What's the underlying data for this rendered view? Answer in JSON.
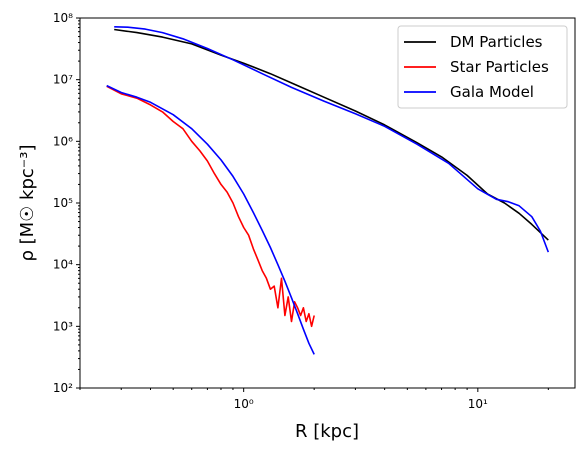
{
  "chart_data": {
    "type": "line",
    "title": "",
    "xlabel": "R [kpc]",
    "ylabel": "ρ [M☉ kpc⁻³]",
    "xscale": "log",
    "yscale": "log",
    "xlim": [
      0.2,
      26
    ],
    "ylim": [
      100,
      100000000
    ],
    "grid": false,
    "legend_position": "top-right",
    "x_ticks": [
      {
        "value": 1,
        "label": "10⁰"
      },
      {
        "value": 10,
        "label": "10¹"
      }
    ],
    "y_ticks": [
      {
        "value": 100,
        "label": "10²"
      },
      {
        "value": 1000,
        "label": "10³"
      },
      {
        "value": 10000,
        "label": "10⁴"
      },
      {
        "value": 100000,
        "label": "10⁵"
      },
      {
        "value": 1000000,
        "label": "10⁶"
      },
      {
        "value": 10000000,
        "label": "10⁷"
      },
      {
        "value": 100000000,
        "label": "10⁸"
      }
    ],
    "series": [
      {
        "name": "DM Particles",
        "color": "#000000",
        "x": [
          0.28,
          0.35,
          0.45,
          0.6,
          0.8,
          1.0,
          1.3,
          1.7,
          2.2,
          3.0,
          4.0,
          5.5,
          7.0,
          9.0,
          11.0,
          13.0,
          15.0,
          17.0,
          20.0
        ],
        "y": [
          65000000,
          58000000,
          49000000,
          38000000,
          25000000,
          18500000,
          12500000,
          8000000,
          5200000,
          3100000,
          1850000,
          950000,
          560000,
          280000,
          140000,
          100000,
          68000,
          45000,
          25000
        ]
      },
      {
        "name": "Star Particles",
        "color": "#ff0000",
        "x": [
          0.26,
          0.3,
          0.35,
          0.4,
          0.45,
          0.5,
          0.55,
          0.6,
          0.65,
          0.7,
          0.75,
          0.8,
          0.85,
          0.9,
          0.95,
          1.0,
          1.05,
          1.1,
          1.15,
          1.2,
          1.25,
          1.3,
          1.35,
          1.4,
          1.45,
          1.5,
          1.55,
          1.6,
          1.65,
          1.7,
          1.75,
          1.8,
          1.85,
          1.9,
          1.95,
          2.0
        ],
        "y": [
          7800000,
          5900000,
          5000000,
          3900000,
          3000000,
          2100000,
          1600000,
          1000000,
          700000,
          480000,
          300000,
          200000,
          150000,
          100000,
          60000,
          40000,
          30000,
          18000,
          12000,
          8000,
          6000,
          4000,
          4500,
          2000,
          6000,
          1500,
          3000,
          1200,
          2500,
          2000,
          1500,
          2000,
          1200,
          1600,
          1000,
          1500
        ]
      },
      {
        "name": "Gala Model",
        "color": "#0000ff",
        "x": [
          0.26,
          0.3,
          0.35,
          0.4,
          0.5,
          0.6,
          0.7,
          0.8,
          0.9,
          1.0,
          1.1,
          1.2,
          1.3,
          1.4,
          1.5,
          1.6,
          1.7,
          1.8,
          1.9,
          2.0
        ],
        "y": [
          8000000,
          6200000,
          5200000,
          4300000,
          2700000,
          1600000,
          900000,
          500000,
          270000,
          140000,
          70000,
          36000,
          19000,
          10000,
          5400,
          2900,
          1600,
          900,
          530,
          350
        ]
      },
      {
        "name": "Gala Model",
        "color": "#0000ff",
        "legend": false,
        "x": [
          0.28,
          0.32,
          0.38,
          0.45,
          0.55,
          0.7,
          0.9,
          1.2,
          1.6,
          2.2,
          3.0,
          4.0,
          5.5,
          7.5,
          10.0,
          12.0,
          13.5,
          15.0,
          17.0,
          18.5,
          20.0
        ],
        "y": [
          72000000,
          71000000,
          66000000,
          58000000,
          46000000,
          32000000,
          21000000,
          12500000,
          7500000,
          4500000,
          2800000,
          1750000,
          900000,
          440000,
          170000,
          115000,
          105000,
          90000,
          60000,
          35000,
          16000
        ]
      }
    ]
  }
}
